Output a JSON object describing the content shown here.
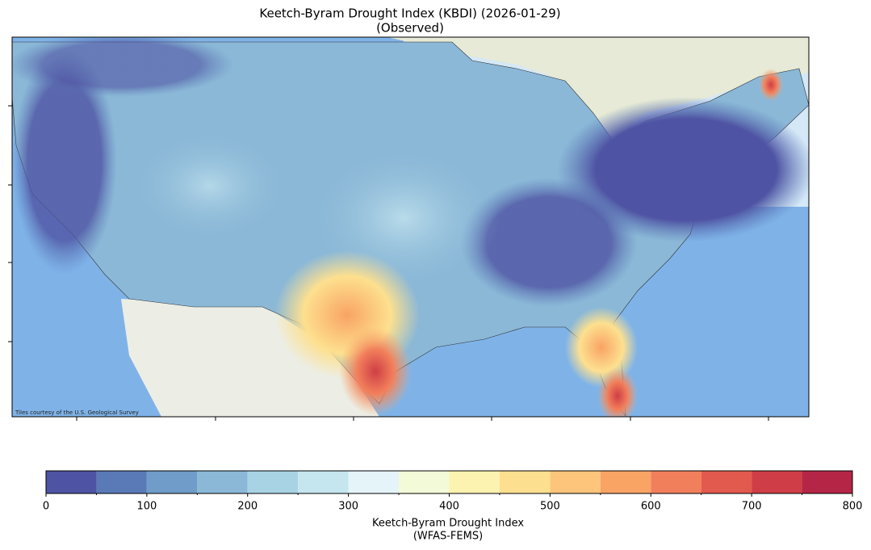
{
  "title": [
    "Keetch-Byram Drought Index (KBDI) (2026-01-29)",
    "(Observed)"
  ],
  "attribution": "Tiles courtesy of the U.S. Geological Survey",
  "colorbar": {
    "bounds": [
      0,
      50,
      100,
      150,
      200,
      250,
      300,
      350,
      400,
      450,
      500,
      550,
      600,
      650,
      700,
      750,
      800
    ],
    "colors": [
      "#4f53a3",
      "#5a79b7",
      "#6f9cc8",
      "#8bb8d7",
      "#a8d3e5",
      "#c5e5ef",
      "#e4f4f8",
      "#f3fad8",
      "#fdf3b0",
      "#fde08f",
      "#fdc57c",
      "#f9a365",
      "#f27f5b",
      "#e25a4d",
      "#cf3e46",
      "#b52646"
    ],
    "xlim": [
      0,
      800
    ],
    "xticks": [
      0,
      100,
      200,
      300,
      400,
      500,
      600,
      700,
      800
    ],
    "label": [
      "Keetch-Byram Drought Index",
      "(WFAS-FEMS)"
    ]
  }
}
